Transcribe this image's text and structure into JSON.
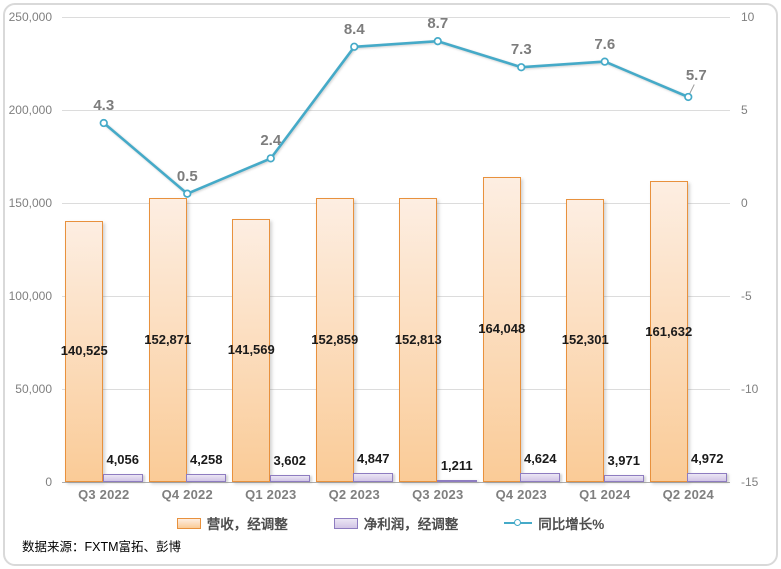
{
  "chart_data": {
    "type": "combo",
    "categories": [
      "Q3 2022",
      "Q4 2022",
      "Q1 2023",
      "Q2 2023",
      "Q3 2023",
      "Q4 2023",
      "Q1 2024",
      "Q2 2024"
    ],
    "series": [
      {
        "name": "营收，经调整",
        "type": "bar",
        "axis": "left",
        "values": [
          140525,
          152871,
          141569,
          152859,
          152813,
          164048,
          152301,
          161632
        ],
        "labels": [
          "140,525",
          "152,871",
          "141,569",
          "152,859",
          "152,813",
          "164,048",
          "152,301",
          "161,632"
        ]
      },
      {
        "name": "净利润，经调整",
        "type": "bar",
        "axis": "left",
        "values": [
          4056,
          4258,
          3602,
          4847,
          1211,
          4624,
          3971,
          4972
        ],
        "labels": [
          "4,056",
          "4,258",
          "3,602",
          "4,847",
          "1,211",
          "4,624",
          "3,971",
          "4,972"
        ]
      },
      {
        "name": "同比增长%",
        "type": "line",
        "axis": "right",
        "values": [
          4.3,
          0.5,
          2.4,
          8.4,
          8.7,
          7.3,
          7.6,
          5.7
        ],
        "labels": [
          "4.3",
          "0.5",
          "2.4",
          "8.4",
          "8.7",
          "7.3",
          "7.6",
          "5.7"
        ]
      }
    ],
    "left_axis": {
      "min": 0,
      "max": 250000,
      "step": 50000,
      "ticks": [
        "250,000",
        "200,000",
        "150,000",
        "100,000",
        "50,000",
        "0"
      ]
    },
    "right_axis": {
      "min": -15,
      "max": 10,
      "step": 5,
      "ticks": [
        "10",
        "5",
        "0",
        "-5",
        "-10",
        "-15"
      ]
    },
    "grid": true,
    "legend_position": "bottom",
    "title": ""
  },
  "colors": {
    "line": "#45AAC8",
    "gridline": "#DCDCDC",
    "axis_line": "#ADADAD",
    "tick_label": "#7F7F7F",
    "line_label": "#7D7D7D",
    "bar_label": "#1A1A1A",
    "rev_fill_top": "#FDEEE2",
    "rev_fill_bottom": "#FACB97",
    "rev_border": "#E8913D",
    "prof_fill_top": "#EBE6F4",
    "prof_fill_bottom": "#D2C5E6",
    "prof_border": "#8E7CC0",
    "legend_text": "#4D4D4D",
    "source_text": "#000000",
    "frame_border": "#D9D9D9"
  },
  "footer": {
    "source_note": "数据来源：FXTM富拓、彭博"
  }
}
